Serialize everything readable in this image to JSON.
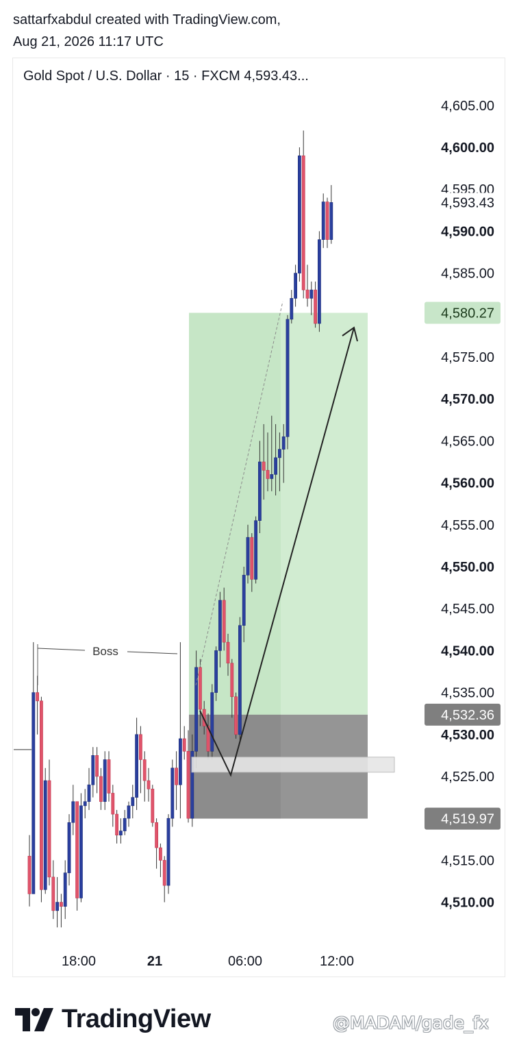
{
  "header": {
    "line1": "sattarfxabdul created with TradingView.com,",
    "line2": "Aug 21, 2026 11:17 UTC"
  },
  "chart_data": {
    "type": "candlestick",
    "title": "Gold Spot / U.S. Dollar · 15 · FXCM  4,593.43...",
    "ylim": [
      4502,
      4610
    ],
    "y_ticks": [
      {
        "value": 4605,
        "label": "4,605.00",
        "bold": false
      },
      {
        "value": 4600,
        "label": "4,600.00",
        "bold": true
      },
      {
        "value": 4595,
        "label": "4,595.00",
        "bold": false
      },
      {
        "value": 4590,
        "label": "4,590.00",
        "bold": true
      },
      {
        "value": 4585,
        "label": "4,585.00",
        "bold": false
      },
      {
        "value": 4575,
        "label": "4,575.00",
        "bold": false
      },
      {
        "value": 4570,
        "label": "4,570.00",
        "bold": true
      },
      {
        "value": 4565,
        "label": "4,565.00",
        "bold": false
      },
      {
        "value": 4560,
        "label": "4,560.00",
        "bold": true
      },
      {
        "value": 4555,
        "label": "4,555.00",
        "bold": false
      },
      {
        "value": 4550,
        "label": "4,550.00",
        "bold": true
      },
      {
        "value": 4545,
        "label": "4,545.00",
        "bold": false
      },
      {
        "value": 4540,
        "label": "4,540.00",
        "bold": true
      },
      {
        "value": 4535,
        "label": "4,535.00",
        "bold": false
      },
      {
        "value": 4530,
        "label": "4,530.00",
        "bold": true
      },
      {
        "value": 4525,
        "label": "4,525.00",
        "bold": false
      },
      {
        "value": 4515,
        "label": "4,515.00",
        "bold": false
      },
      {
        "value": 4510,
        "label": "4,510.00",
        "bold": true
      }
    ],
    "price_labels": [
      {
        "value": 4593.43,
        "label": "4,593.43",
        "style": "plain"
      },
      {
        "value": 4580.27,
        "label": "4,580.27",
        "style": "green"
      },
      {
        "value": 4532.36,
        "label": "4,532.36",
        "style": "gray"
      },
      {
        "value": 4519.97,
        "label": "4,519.97",
        "style": "gray"
      }
    ],
    "x_ticks": [
      {
        "label": "18:00",
        "bold": false
      },
      {
        "label": "21",
        "bold": true
      },
      {
        "label": "06:00",
        "bold": false
      },
      {
        "label": "12:00",
        "bold": false
      }
    ],
    "annotations": {
      "boss_label": "Boss"
    },
    "colors": {
      "up": "#2a3f9e",
      "down": "#e0546b",
      "profit_zone": "#c9e9c9",
      "loss_zone": "#8a8a8a",
      "green_label": "#c8e6c9",
      "gray_label": "#7f7f7f"
    },
    "candles": [
      [
        4515.5,
        4511.0,
        4509.5,
        4518.0
      ],
      [
        4511.0,
        4535.0,
        4511.0,
        4541.0
      ],
      [
        4535.0,
        4534.0,
        4530.0,
        4537.0
      ],
      [
        4534.0,
        4511.5,
        4510.0,
        4534.5
      ],
      [
        4511.5,
        4524.5,
        4511.0,
        4526.0
      ],
      [
        4524.5,
        4513.0,
        4512.0,
        4527.0
      ],
      [
        4513.0,
        4509.0,
        4508.0,
        4515.0
      ],
      [
        4509.0,
        4510.0,
        4507.0,
        4513.0
      ],
      [
        4510.0,
        4509.5,
        4507.0,
        4511.0
      ],
      [
        4509.5,
        4513.5,
        4508.0,
        4515.0
      ],
      [
        4513.5,
        4519.5,
        4512.0,
        4520.5
      ],
      [
        4519.5,
        4522.0,
        4518.0,
        4524.0
      ],
      [
        4522.0,
        4510.5,
        4509.0,
        4522.0
      ],
      [
        4510.5,
        4521.5,
        4510.0,
        4523.0
      ],
      [
        4521.5,
        4522.0,
        4520.0,
        4523.5
      ],
      [
        4522.0,
        4524.0,
        4521.0,
        4526.0
      ],
      [
        4524.0,
        4527.5,
        4522.5,
        4528.5
      ],
      [
        4527.5,
        4525.0,
        4523.0,
        4528.5
      ],
      [
        4525.0,
        4522.0,
        4521.0,
        4526.0
      ],
      [
        4522.0,
        4527.0,
        4521.0,
        4528.0
      ],
      [
        4527.0,
        4523.0,
        4522.0,
        4528.0
      ],
      [
        4523.0,
        4520.5,
        4519.0,
        4524.0
      ],
      [
        4520.5,
        4518.0,
        4517.0,
        4521.0
      ],
      [
        4518.0,
        4518.5,
        4517.0,
        4520.0
      ],
      [
        4518.5,
        4520.0,
        4518.0,
        4521.0
      ],
      [
        4520.0,
        4521.5,
        4519.0,
        4522.0
      ],
      [
        4521.5,
        4522.5,
        4520.0,
        4524.0
      ],
      [
        4522.5,
        4530.0,
        4521.0,
        4532.0
      ],
      [
        4530.0,
        4527.0,
        4523.0,
        4531.0
      ],
      [
        4527.0,
        4524.5,
        4522.0,
        4528.0
      ],
      [
        4524.5,
        4523.5,
        4522.0,
        4526.0
      ],
      [
        4523.5,
        4519.5,
        4519.0,
        4524.0
      ],
      [
        4519.5,
        4516.5,
        4514.0,
        4520.0
      ],
      [
        4516.5,
        4515.0,
        4513.0,
        4517.0
      ],
      [
        4515.0,
        4512.0,
        4510.0,
        4515.5
      ],
      [
        4512.0,
        4520.0,
        4511.0,
        4520.5
      ],
      [
        4520.0,
        4526.0,
        4519.0,
        4527.0
      ],
      [
        4526.0,
        4524.0,
        4521.0,
        4528.0
      ],
      [
        4524.0,
        4529.5,
        4520.0,
        4541.0
      ],
      [
        4529.5,
        4528.0,
        4527.0,
        4531.0
      ],
      [
        4528.0,
        4520.0,
        4519.5,
        4530.5
      ],
      [
        4520.0,
        4528.0,
        4519.0,
        4530.0
      ],
      [
        4528.0,
        4538.0,
        4526.0,
        4540.0
      ],
      [
        4538.0,
        4533.0,
        4531.0,
        4539.0
      ],
      [
        4533.0,
        4531.0,
        4530.0,
        4534.0
      ],
      [
        4531.0,
        4528.0,
        4527.0,
        4532.5
      ],
      [
        4528.0,
        4535.0,
        4527.0,
        4536.0
      ],
      [
        4535.0,
        4540.0,
        4534.0,
        4540.5
      ],
      [
        4540.0,
        4546.0,
        4538.0,
        4547.0
      ],
      [
        4546.0,
        4541.0,
        4540.0,
        4547.5
      ],
      [
        4541.0,
        4538.5,
        4537.0,
        4542.0
      ],
      [
        4538.5,
        4534.5,
        4532.0,
        4539.0
      ],
      [
        4534.5,
        4530.0,
        4529.5,
        4535.0
      ],
      [
        4530.0,
        4543.0,
        4529.0,
        4544.0
      ],
      [
        4543.0,
        4549.0,
        4541.0,
        4550.0
      ],
      [
        4549.0,
        4553.5,
        4548.0,
        4555.0
      ],
      [
        4553.5,
        4548.5,
        4547.0,
        4554.0
      ],
      [
        4548.5,
        4555.5,
        4548.0,
        4556.0
      ],
      [
        4555.5,
        4562.5,
        4554.0,
        4565.0
      ],
      [
        4562.5,
        4561.5,
        4558.0,
        4567.0
      ],
      [
        4561.5,
        4560.5,
        4559.0,
        4566.0
      ],
      [
        4560.5,
        4561.0,
        4559.0,
        4568.0
      ],
      [
        4561.0,
        4563.0,
        4558.5,
        4567.0
      ],
      [
        4563.0,
        4564.0,
        4559.0,
        4566.0
      ],
      [
        4564.0,
        4565.5,
        4560.0,
        4567.0
      ],
      [
        4565.5,
        4579.5,
        4564.0,
        4580.0
      ],
      [
        4579.5,
        4582.0,
        4579.0,
        4583.0
      ],
      [
        4582.0,
        4585.0,
        4581.0,
        4586.0
      ],
      [
        4585.0,
        4599.0,
        4584.0,
        4600.0
      ],
      [
        4599.0,
        4583.0,
        4582.0,
        4602.0
      ],
      [
        4583.0,
        4582.0,
        4581.0,
        4586.0
      ],
      [
        4582.0,
        4583.0,
        4580.0,
        4584.0
      ],
      [
        4583.0,
        4579.0,
        4578.5,
        4584.0
      ],
      [
        4579.0,
        4589.0,
        4578.0,
        4590.0
      ],
      [
        4589.0,
        4593.5,
        4588.0,
        4594.5
      ],
      [
        4593.5,
        4589.0,
        4588.0,
        4594.0
      ],
      [
        4589.0,
        4593.43,
        4588.5,
        4595.5
      ]
    ]
  }
}
